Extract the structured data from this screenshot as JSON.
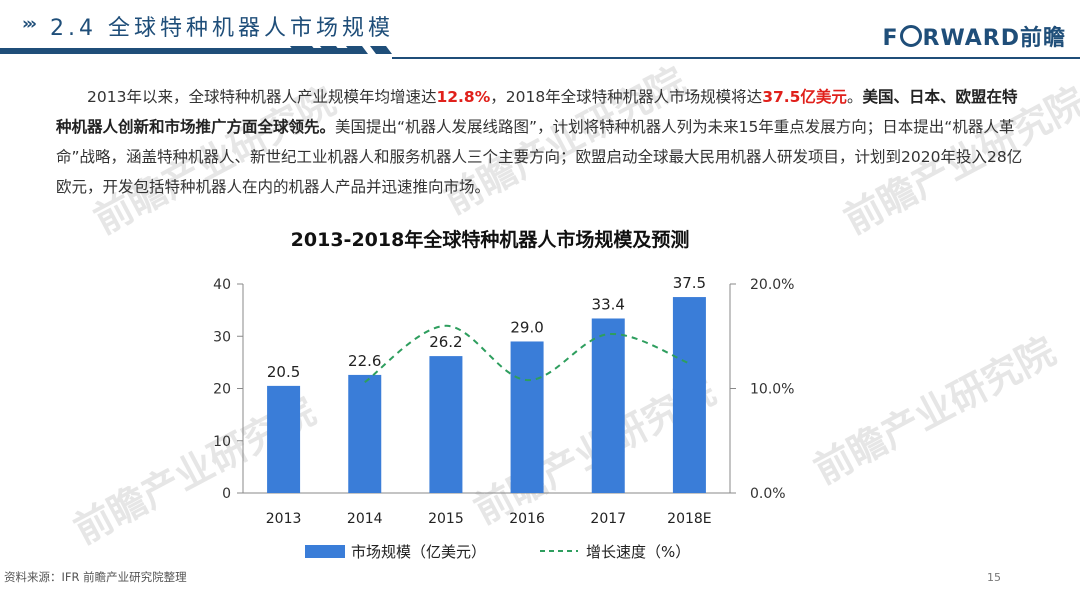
{
  "header": {
    "arrows": "›››",
    "title": "2.4 全球特种机器人市场规模",
    "logo": "FORWARD前瞻"
  },
  "intro": {
    "part1": "2013年以来，全球特种机器人产业规模年均增速达",
    "highlight1": "12.8%",
    "part2": "，2018年全球特种机器人市场规模将达",
    "highlight2": "37.5亿美元",
    "part3": "。",
    "bold": "美国、日本、欧盟在特种机器人创新和市场推广方面全球领先。",
    "part4": "美国提出“机器人发展线路图”，计划将特种机器人列为未来15年重点发展方向；日本提出“机器人革命”战略，涵盖特种机器人、新世纪工业机器人和服务机器人三个主要方向；欧盟启动全球最大民用机器人研发项目，计划到2020年投入28亿欧元，开发包括特种机器人在内的机器人产品并迅速推向市场。"
  },
  "chart_data": {
    "type": "bar",
    "title": "2013-2018年全球特种机器人市场规模及预测",
    "categories": [
      "2013",
      "2014",
      "2015",
      "2016",
      "2017",
      "2018E"
    ],
    "series": [
      {
        "name": "市场规模（亿美元）",
        "type": "bar",
        "axis": "left",
        "color": "#3a7dd8",
        "values": [
          20.5,
          22.6,
          26.2,
          29.0,
          33.4,
          37.5
        ],
        "labels": [
          "20.5",
          "22.6",
          "26.2",
          "29.0",
          "33.4",
          "37.5"
        ]
      },
      {
        "name": "增长速度（%）",
        "type": "line",
        "style": "dashed",
        "axis": "right",
        "color": "#2e9e5e",
        "values": [
          null,
          10.6,
          16.0,
          10.8,
          15.2,
          12.4
        ]
      }
    ],
    "yleft": {
      "min": 0,
      "max": 40,
      "ticks": [
        "0",
        "10",
        "20",
        "30",
        "40"
      ]
    },
    "yright": {
      "min": 0,
      "max": 20,
      "ticks": [
        "0.0%",
        "10.0%",
        "20.0%"
      ]
    },
    "grid": false,
    "legend": "bottom"
  },
  "watermark": "前瞻产业研究院",
  "footer": {
    "source": "资料来源：IFR 前瞻产业研究院整理",
    "page": "15"
  }
}
